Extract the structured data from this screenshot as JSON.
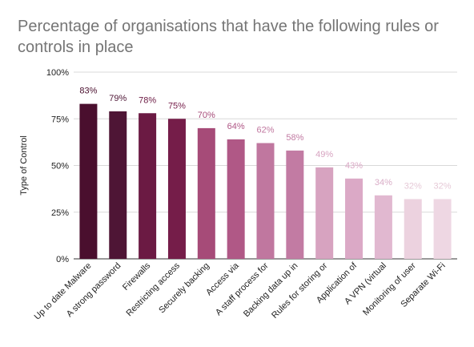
{
  "chart_data": {
    "type": "bar",
    "title": "Percentage of organisations that have the following rules or controls in place",
    "xlabel": "",
    "ylabel": "Type of Control",
    "ylim": [
      0,
      100
    ],
    "yticks": [
      "0%",
      "25%",
      "50%",
      "75%",
      "100%"
    ],
    "grid": true,
    "legend": "none",
    "categories": [
      "Up to date Malware",
      "A strong password",
      "Firewalls",
      "Restricting access",
      "Securely backing",
      "Access via",
      "A staff process for",
      "Backing data up in",
      "Rules for storing or",
      "Application of",
      "A VPN (virtual",
      "Monitoring of user",
      "Separate Wi-Fi"
    ],
    "values": [
      83,
      79,
      78,
      75,
      70,
      64,
      62,
      58,
      49,
      43,
      34,
      32,
      32
    ],
    "data_labels": [
      "83%",
      "79%",
      "78%",
      "75%",
      "70%",
      "64%",
      "62%",
      "58%",
      "49%",
      "43%",
      "34%",
      "32%",
      "32%"
    ],
    "colors": [
      "#4a0f2e",
      "#4e1535",
      "#6b1a43",
      "#751d49",
      "#a64b78",
      "#b05886",
      "#c0779f",
      "#c27ba3",
      "#d7a3c0",
      "#dba9c6",
      "#e1b8d0",
      "#ecd2df",
      "#eed7e3"
    ],
    "label_colors": [
      "#4a0f2e",
      "#4e1535",
      "#6b1a43",
      "#751d49",
      "#a64b78",
      "#b05886",
      "#c0779f",
      "#c27ba3",
      "#d7a3c0",
      "#dba9c6",
      "#d9adc7",
      "#e6c9d7",
      "#e6c9d7"
    ]
  }
}
